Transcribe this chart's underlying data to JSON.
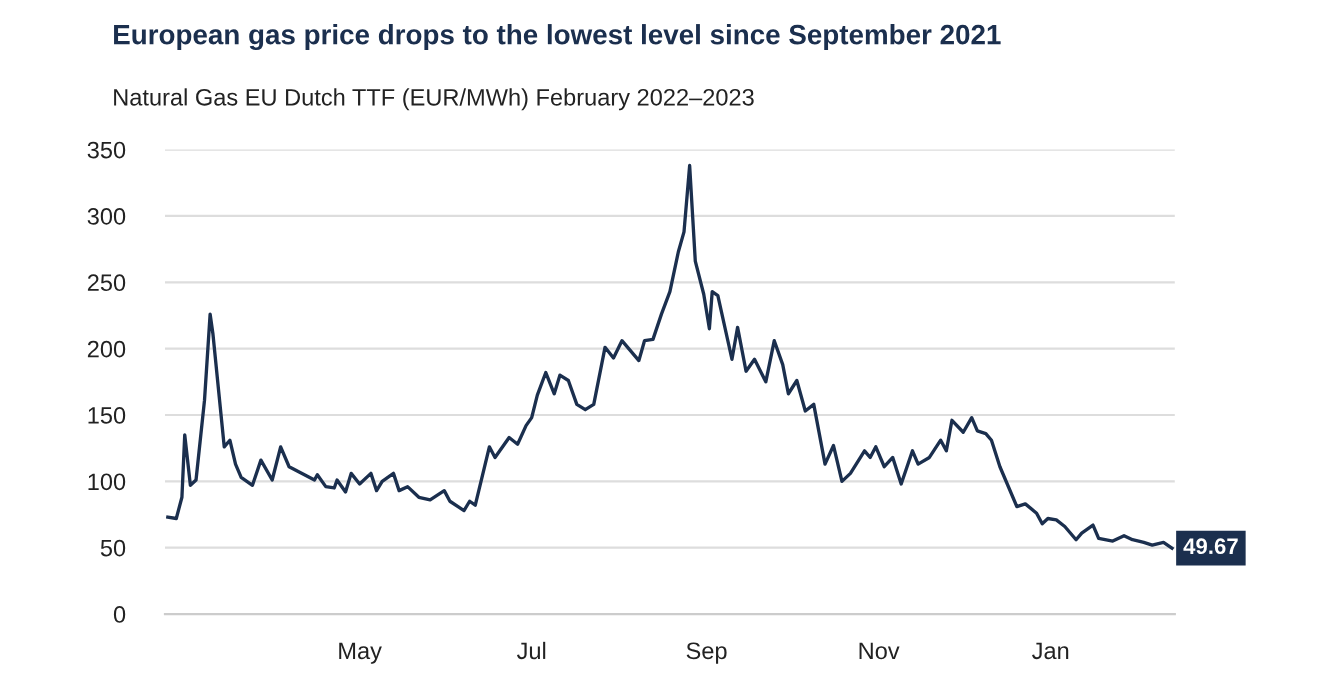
{
  "chart_data": {
    "type": "line",
    "title": "European gas price drops to the lowest level since September 2021",
    "subtitle": "Natural Gas EU Dutch TTF (EUR/MWh) February 2022–2023",
    "x": [
      "2022-02-22",
      "2022-02-25",
      "2022-02-27",
      "2022-02-28",
      "2022-03-02",
      "2022-03-04",
      "2022-03-07",
      "2022-03-09",
      "2022-03-10",
      "2022-03-14",
      "2022-03-16",
      "2022-03-18",
      "2022-03-20",
      "2022-03-24",
      "2022-03-27",
      "2022-03-31",
      "2022-04-03",
      "2022-04-06",
      "2022-04-15",
      "2022-04-16",
      "2022-04-19",
      "2022-04-22",
      "2022-04-23",
      "2022-04-26",
      "2022-04-28",
      "2022-05-01",
      "2022-05-05",
      "2022-05-07",
      "2022-05-09",
      "2022-05-13",
      "2022-05-15",
      "2022-05-18",
      "2022-05-22",
      "2022-05-26",
      "2022-05-31",
      "2022-06-02",
      "2022-06-07",
      "2022-06-09",
      "2022-06-11",
      "2022-06-16",
      "2022-06-18",
      "2022-06-23",
      "2022-06-26",
      "2022-06-29",
      "2022-07-01",
      "2022-07-03",
      "2022-07-06",
      "2022-07-09",
      "2022-07-11",
      "2022-07-14",
      "2022-07-17",
      "2022-07-20",
      "2022-07-23",
      "2022-07-27",
      "2022-07-30",
      "2022-08-02",
      "2022-08-08",
      "2022-08-10",
      "2022-08-13",
      "2022-08-16",
      "2022-08-19",
      "2022-08-22",
      "2022-08-24",
      "2022-08-26",
      "2022-08-28",
      "2022-08-31",
      "2022-09-02",
      "2022-09-03",
      "2022-09-05",
      "2022-09-10",
      "2022-09-12",
      "2022-09-15",
      "2022-09-18",
      "2022-09-22",
      "2022-09-25",
      "2022-09-28",
      "2022-09-30",
      "2022-10-03",
      "2022-10-06",
      "2022-10-09",
      "2022-10-13",
      "2022-10-16",
      "2022-10-19",
      "2022-10-22",
      "2022-10-27",
      "2022-10-29",
      "2022-10-31",
      "2022-11-03",
      "2022-11-06",
      "2022-11-09",
      "2022-11-13",
      "2022-11-15",
      "2022-11-19",
      "2022-11-23",
      "2022-11-25",
      "2022-11-27",
      "2022-12-01",
      "2022-12-04",
      "2022-12-06",
      "2022-12-09",
      "2022-12-11",
      "2022-12-14",
      "2022-12-20",
      "2022-12-23",
      "2022-12-27",
      "2022-12-29",
      "2022-12-31",
      "2023-01-03",
      "2023-01-06",
      "2023-01-10",
      "2023-01-12",
      "2023-01-16",
      "2023-01-18",
      "2023-01-23",
      "2023-01-27",
      "2023-01-30",
      "2023-02-03",
      "2023-02-06",
      "2023-02-10",
      "2023-02-13"
    ],
    "series": [
      {
        "color": "#1b2f4e",
        "values": [
          73,
          72,
          88,
          135,
          97,
          101,
          161,
          226,
          211,
          126,
          131,
          113,
          103,
          97,
          116,
          101,
          126,
          111,
          101,
          105,
          96,
          95,
          101,
          92,
          106,
          98,
          106,
          93,
          100,
          106,
          93,
          96,
          88,
          86,
          93,
          85,
          78,
          85,
          82,
          126,
          118,
          133,
          128,
          142,
          148,
          165,
          182,
          166,
          180,
          176,
          158,
          154,
          158,
          201,
          193,
          206,
          191,
          206,
          207,
          226,
          243,
          273,
          288,
          338,
          266,
          241,
          215,
          243,
          240,
          192,
          216,
          183,
          192,
          175,
          206,
          188,
          166,
          176,
          153,
          158,
          113,
          127,
          100,
          106,
          123,
          118,
          126,
          111,
          118,
          98,
          123,
          113,
          118,
          131,
          123,
          146,
          137,
          148,
          138,
          136,
          131,
          111,
          81,
          83,
          76,
          68,
          72,
          71,
          66,
          56,
          61,
          67,
          57,
          55,
          59,
          56,
          54,
          52,
          54,
          49.67
        ]
      }
    ],
    "annotations": [
      {
        "text": "49.67",
        "x": "2023-02-13",
        "y": 49.67
      }
    ],
    "xlim": [
      "2022-02-21",
      "2023-02-14"
    ],
    "xticks": [
      {
        "value": "2022-05-01",
        "label": "May"
      },
      {
        "value": "2022-07-01",
        "label": "Jul"
      },
      {
        "value": "2022-09-01",
        "label": "Sep"
      },
      {
        "value": "2022-11-01",
        "label": "Nov"
      },
      {
        "value": "2023-01-01",
        "label": "Jan"
      }
    ],
    "ylim": [
      0,
      350
    ],
    "yticks": [
      0,
      50,
      100,
      150,
      200,
      250,
      300,
      350
    ],
    "grid": "y",
    "marker": "none",
    "line_style": "solid",
    "legend": false
  }
}
